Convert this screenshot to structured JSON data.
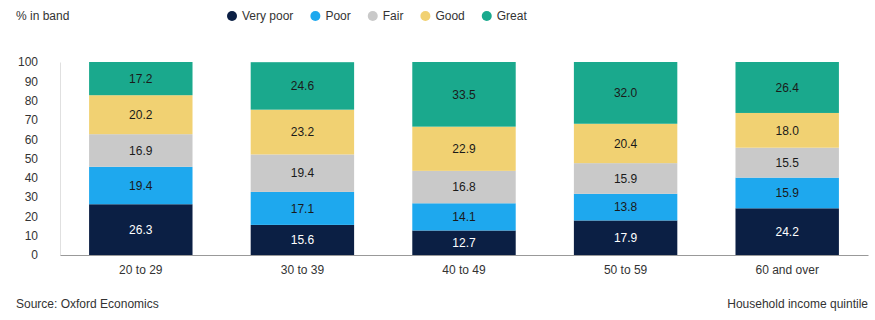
{
  "chart_data": {
    "type": "bar",
    "stacked": true,
    "data_labels": true,
    "legend": "top",
    "grid": false,
    "y_label": "% in band",
    "x_label": "Household income quintile",
    "source": "Source: Oxford Economics",
    "categories": [
      "20 to 29",
      "30 to 39",
      "40 to 49",
      "50 to 59",
      "60 and over"
    ],
    "ylim": [
      0,
      100
    ],
    "yticks": [
      0,
      10,
      20,
      30,
      40,
      50,
      60,
      70,
      80,
      90,
      100
    ],
    "series": [
      {
        "name": "Very poor",
        "color": "#0b1f44",
        "values": [
          26.3,
          15.6,
          12.7,
          17.9,
          24.2
        ],
        "value_labels": [
          "26.3",
          "15.6",
          "12.7",
          "17.9",
          "24.2"
        ]
      },
      {
        "name": "Poor",
        "color": "#1ea8ee",
        "values": [
          19.4,
          17.1,
          14.1,
          13.8,
          15.9
        ],
        "value_labels": [
          "19.4",
          "17.1",
          "14.1",
          "13.8",
          "15.9"
        ]
      },
      {
        "name": "Fair",
        "color": "#c9c9c9",
        "values": [
          16.9,
          19.4,
          16.8,
          15.9,
          15.5
        ],
        "value_labels": [
          "16.9",
          "19.4",
          "16.8",
          "15.9",
          "15.5"
        ]
      },
      {
        "name": "Good",
        "color": "#f1d172",
        "values": [
          20.2,
          23.2,
          22.9,
          20.4,
          18.0
        ],
        "value_labels": [
          "20.2",
          "23.2",
          "22.9",
          "20.4",
          "18.0"
        ]
      },
      {
        "name": "Great",
        "color": "#1aa98d",
        "values": [
          17.2,
          24.6,
          33.5,
          32.0,
          26.4
        ],
        "value_labels": [
          "17.2",
          "24.6",
          "33.5",
          "32.0",
          "26.4"
        ]
      }
    ]
  }
}
